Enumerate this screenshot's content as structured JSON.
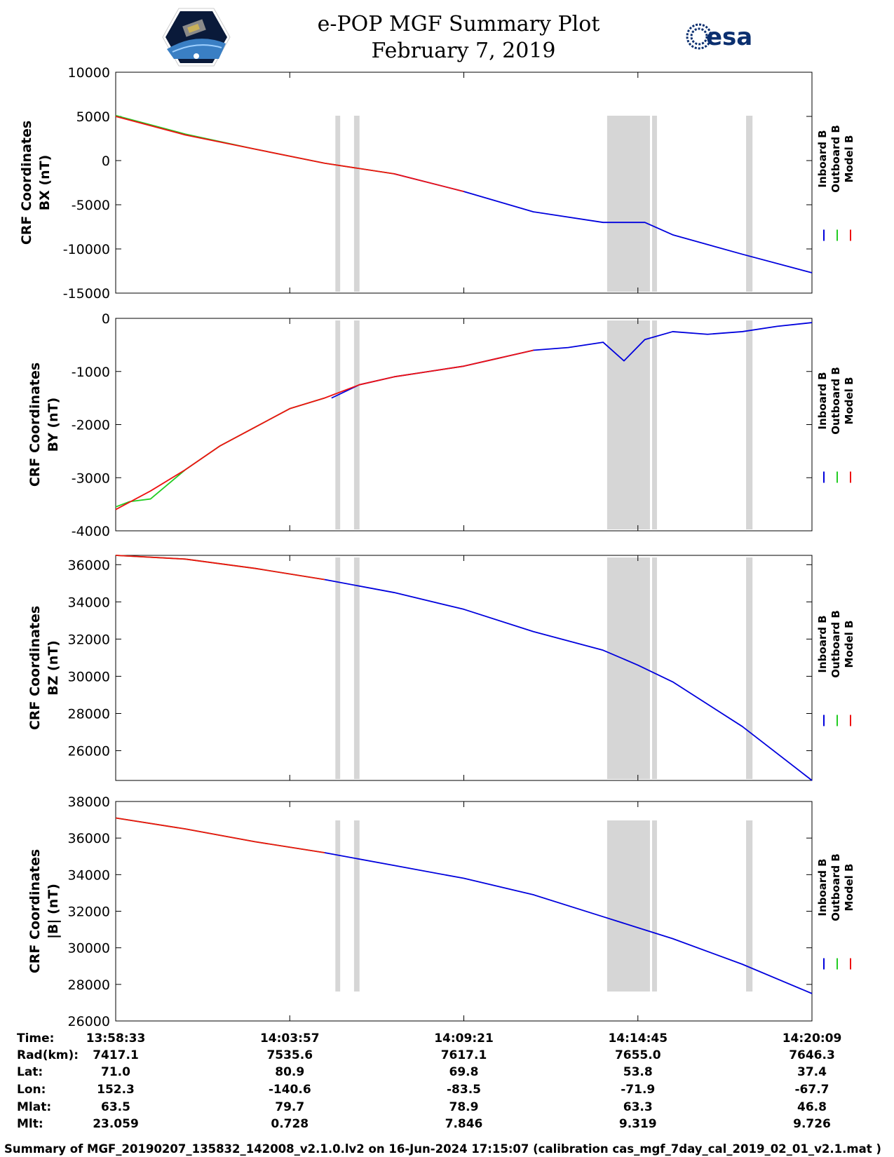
{
  "header": {
    "title": "e-POP MGF Summary Plot",
    "date": "February 7, 2019",
    "esa_logo_text": "esa"
  },
  "legend": [
    "Inboard B",
    "Outboard B",
    "Model B"
  ],
  "colors": {
    "inboard": "#0000dd",
    "outboard": "#22cc22",
    "model": "#ee1111",
    "gap": "#d6d6d6"
  },
  "chart_data": [
    {
      "type": "line",
      "id": "bx",
      "ylabel_line1": "CRF Coordinates",
      "ylabel_line2": "BX (nT)",
      "ylim": [
        -15000,
        10000
      ],
      "yticks": [
        10000,
        5000,
        0,
        -5000,
        -10000,
        -15000
      ],
      "xlim": [
        0,
        1
      ],
      "series": [
        {
          "name": "Inboard B",
          "color": "inboard",
          "x": [
            0.4,
            0.5,
            0.6,
            0.7,
            0.75,
            0.7,
            0.76,
            0.8,
            0.9,
            1.0
          ],
          "y": [
            -1500,
            -3500,
            -5800,
            -7000,
            -7000,
            -7000,
            -7000,
            -8400,
            -10600,
            -12700
          ]
        },
        {
          "name": "Outboard B",
          "color": "outboard",
          "x": [
            0,
            0.1,
            0.2,
            0.3,
            0.4
          ],
          "y": [
            5100,
            3000,
            1300,
            -300,
            -1500
          ]
        },
        {
          "name": "Model B",
          "color": "model",
          "x": [
            0,
            0.1,
            0.2,
            0.3,
            0.4,
            0.5
          ],
          "y": [
            5000,
            2900,
            1300,
            -300,
            -1500,
            -3500
          ]
        }
      ]
    },
    {
      "type": "line",
      "id": "by",
      "ylabel_line1": "CRF Coordinates",
      "ylabel_line2": "BY (nT)",
      "ylim": [
        -4000,
        0
      ],
      "yticks": [
        0,
        -1000,
        -2000,
        -3000,
        -4000
      ],
      "xlim": [
        0,
        1
      ],
      "series": [
        {
          "name": "Inboard B",
          "color": "inboard",
          "x": [
            0.31,
            0.35,
            0.4,
            0.45,
            0.5,
            0.55,
            0.6,
            0.65,
            0.7,
            0.73,
            0.76,
            0.8,
            0.85,
            0.9,
            0.95,
            1.0
          ],
          "y": [
            -1500,
            -1250,
            -1100,
            -1000,
            -900,
            -750,
            -600,
            -550,
            -450,
            -800,
            -400,
            -250,
            -300,
            -250,
            -150,
            -80
          ]
        },
        {
          "name": "Outboard B",
          "color": "outboard",
          "x": [
            0,
            0.02,
            0.05,
            0.1,
            0.15,
            0.2,
            0.25,
            0.3
          ],
          "y": [
            -3550,
            -3450,
            -3400,
            -2850,
            -2400,
            -2050,
            -1700,
            -1500
          ]
        },
        {
          "name": "Model B",
          "color": "model",
          "x": [
            0,
            0.05,
            0.1,
            0.15,
            0.2,
            0.25,
            0.3,
            0.35,
            0.4,
            0.45,
            0.5,
            0.55,
            0.6
          ],
          "y": [
            -3600,
            -3250,
            -2850,
            -2400,
            -2050,
            -1700,
            -1500,
            -1250,
            -1100,
            -1000,
            -900,
            -750,
            -600
          ]
        }
      ]
    },
    {
      "type": "line",
      "id": "bz",
      "ylabel_line1": "CRF Coordinates",
      "ylabel_line2": "BZ (nT)",
      "ylim": [
        24400,
        36500
      ],
      "yticks": [
        36000,
        34000,
        32000,
        30000,
        28000,
        26000
      ],
      "xlim": [
        0,
        1
      ],
      "series": [
        {
          "name": "Inboard B",
          "color": "inboard",
          "x": [
            0.3,
            0.4,
            0.5,
            0.6,
            0.7,
            0.75,
            0.8,
            0.9,
            1.0
          ],
          "y": [
            35200,
            34500,
            33600,
            32400,
            31400,
            30600,
            29700,
            27300,
            24400
          ]
        },
        {
          "name": "Outboard B",
          "color": "outboard",
          "x": [
            0,
            0.1,
            0.2,
            0.3
          ],
          "y": [
            36500,
            36300,
            35800,
            35200
          ]
        },
        {
          "name": "Model B",
          "color": "model",
          "x": [
            0,
            0.1,
            0.2,
            0.3
          ],
          "y": [
            36500,
            36300,
            35800,
            35200
          ]
        }
      ]
    },
    {
      "type": "line",
      "id": "bt",
      "ylabel_line1": "CRF Coordinates",
      "ylabel_line2": "|B| (nT)",
      "ylim": [
        26000,
        38000
      ],
      "yticks": [
        38000,
        36000,
        34000,
        32000,
        30000,
        28000,
        26000
      ],
      "xlim": [
        0,
        1
      ],
      "series": [
        {
          "name": "Inboard B",
          "color": "inboard",
          "x": [
            0.3,
            0.4,
            0.5,
            0.6,
            0.7,
            0.75,
            0.8,
            0.9,
            1.0
          ],
          "y": [
            35200,
            34500,
            33800,
            32900,
            31700,
            31100,
            30500,
            29100,
            27500
          ]
        },
        {
          "name": "Outboard B",
          "color": "outboard",
          "x": [
            0,
            0.1,
            0.2,
            0.3
          ],
          "y": [
            37100,
            36500,
            35800,
            35200
          ]
        },
        {
          "name": "Model B",
          "color": "model",
          "x": [
            0,
            0.1,
            0.2,
            0.3
          ],
          "y": [
            37100,
            36500,
            35800,
            35200
          ]
        }
      ]
    }
  ],
  "gaps": [
    [
      0.3155,
      0.3224
    ],
    [
      0.3423,
      0.3502
    ],
    [
      0.7058,
      0.7673
    ],
    [
      0.7704,
      0.7774
    ],
    [
      0.9054,
      0.9146
    ]
  ],
  "ephemeris": {
    "labels": [
      "Time:",
      "Rad(km):",
      "Lat:",
      "Lon:",
      "Mlat:",
      "Mlt:"
    ],
    "columns": [
      [
        "13:58:33",
        "7417.1",
        "71.0",
        "152.3",
        "63.5",
        "23.059"
      ],
      [
        "14:03:57",
        "7535.6",
        "80.9",
        "-140.6",
        "79.7",
        "0.728"
      ],
      [
        "14:09:21",
        "7617.1",
        "69.8",
        "-83.5",
        "78.9",
        "7.846"
      ],
      [
        "14:14:45",
        "7655.0",
        "53.8",
        "-71.9",
        "63.3",
        "9.319"
      ],
      [
        "14:20:09",
        "7646.3",
        "37.4",
        "-67.7",
        "46.8",
        "9.726"
      ]
    ]
  },
  "footer": "Summary of MGF_20190207_135832_142008_v2.1.0.lv2 on 16-Jun-2024 17:15:07 (calibration cas_mgf_7day_cal_2019_02_01_v2.1.mat )"
}
